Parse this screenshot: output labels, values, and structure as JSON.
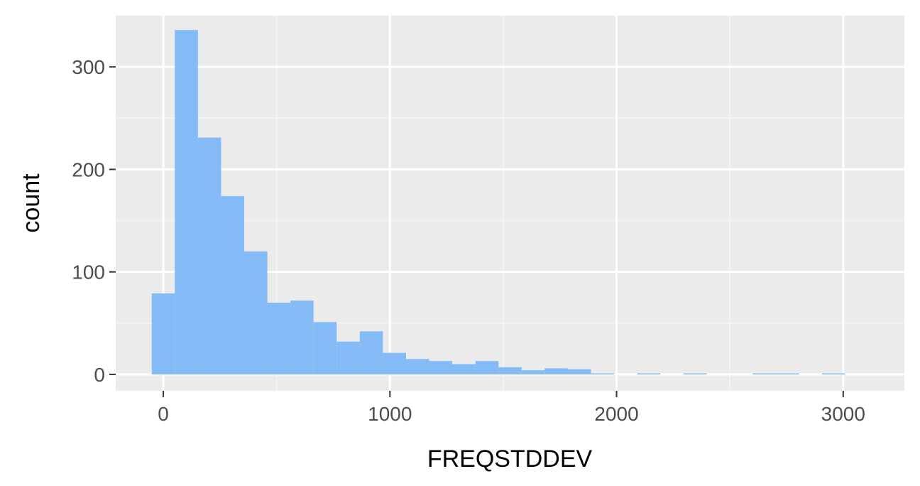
{
  "chart_data": {
    "type": "bar",
    "subtype": "histogram",
    "xlabel": "FREQSTDDEV",
    "ylabel": "count",
    "xlim": [
      -210,
      3270
    ],
    "ylim": [
      -16,
      350
    ],
    "x_ticks": [
      0,
      1000,
      2000,
      3000
    ],
    "x_tick_labels": [
      "0",
      "1000",
      "2000",
      "3000"
    ],
    "y_ticks": [
      0,
      100,
      200,
      300
    ],
    "y_tick_labels": [
      "0",
      "100",
      "200",
      "300"
    ],
    "x_minor_ticks": [
      500,
      1500,
      2500
    ],
    "y_minor_ticks": [
      50,
      150,
      250
    ],
    "grid": true,
    "bin_width": 102,
    "bin_start": -51,
    "counts": [
      79,
      336,
      231,
      174,
      120,
      70,
      72,
      51,
      32,
      42,
      21,
      15,
      13,
      10,
      13,
      7,
      4,
      6,
      5,
      1,
      0,
      1,
      0,
      1,
      0,
      0,
      1,
      1,
      0,
      1
    ],
    "colors": {
      "fill": "#84baf6",
      "panel": "#ebebeb",
      "grid_major": "#ffffff",
      "grid_minor": "#f5f5f5",
      "tick": "#333333"
    }
  }
}
